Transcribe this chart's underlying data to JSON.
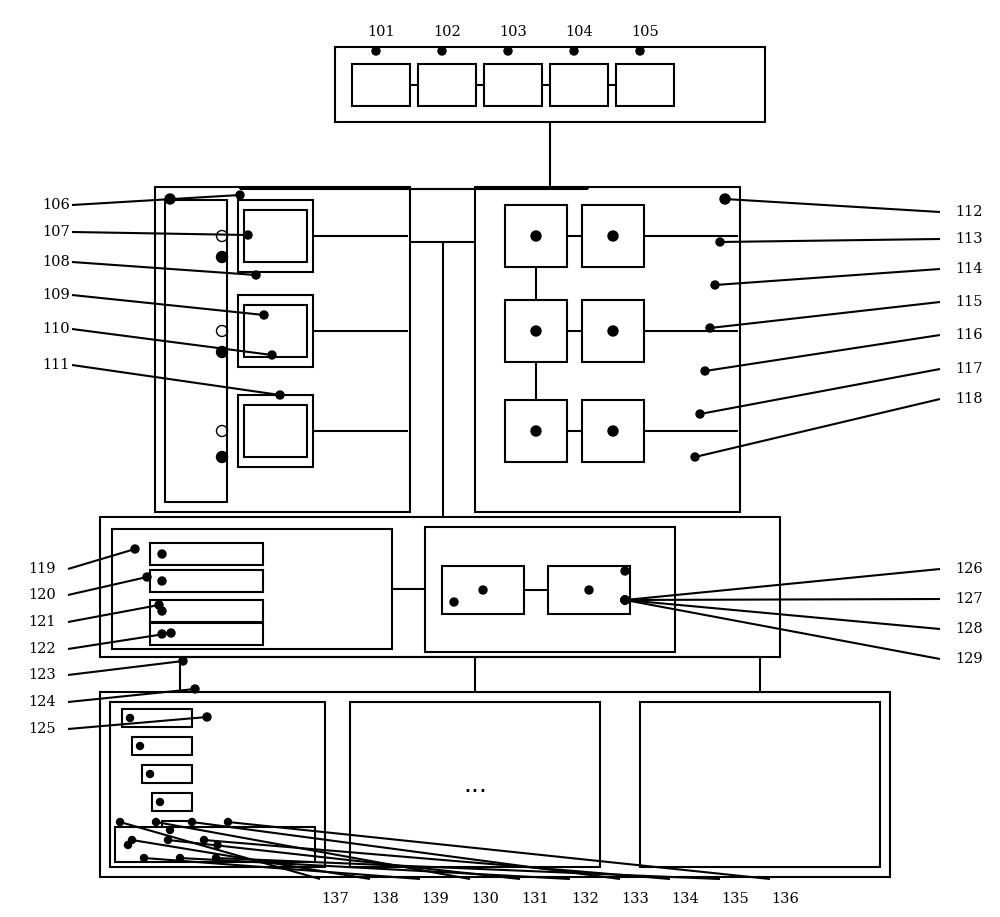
{
  "bg_color": "#ffffff",
  "line_color": "#000000",
  "lw": 1.5,
  "labels_top": [
    "101",
    "102",
    "103",
    "104",
    "105"
  ],
  "labels_left_upper": [
    "106",
    "107",
    "108",
    "109",
    "110",
    "111"
  ],
  "labels_right_upper": [
    "112",
    "113",
    "114",
    "115",
    "116",
    "117",
    "118"
  ],
  "labels_left_mid": [
    "119",
    "120",
    "121",
    "122",
    "123",
    "124",
    "125"
  ],
  "labels_right_mid": [
    "126",
    "127",
    "128",
    "129"
  ],
  "labels_bottom": [
    "137",
    "138",
    "139",
    "130",
    "131",
    "132",
    "133",
    "134",
    "135",
    "136"
  ]
}
